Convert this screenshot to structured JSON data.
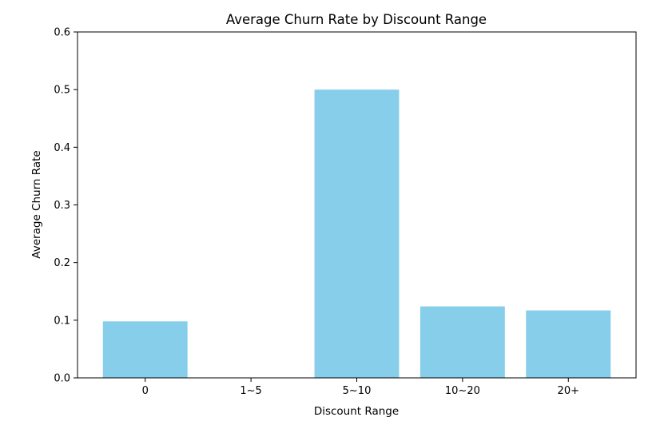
{
  "chart_data": {
    "type": "bar",
    "title": "Average Churn Rate by Discount Range",
    "xlabel": "Discount Range",
    "ylabel": "Average Churn Rate",
    "categories": [
      "0",
      "1~5",
      "5~10",
      "10~20",
      "20+"
    ],
    "values": [
      0.098,
      0.0,
      0.5,
      0.124,
      0.117
    ],
    "ylim": [
      0,
      0.6
    ],
    "yticks": [
      "0.0",
      "0.1",
      "0.2",
      "0.3",
      "0.4",
      "0.5",
      "0.6"
    ],
    "grid": false,
    "bar_color": "#87ceeb"
  }
}
